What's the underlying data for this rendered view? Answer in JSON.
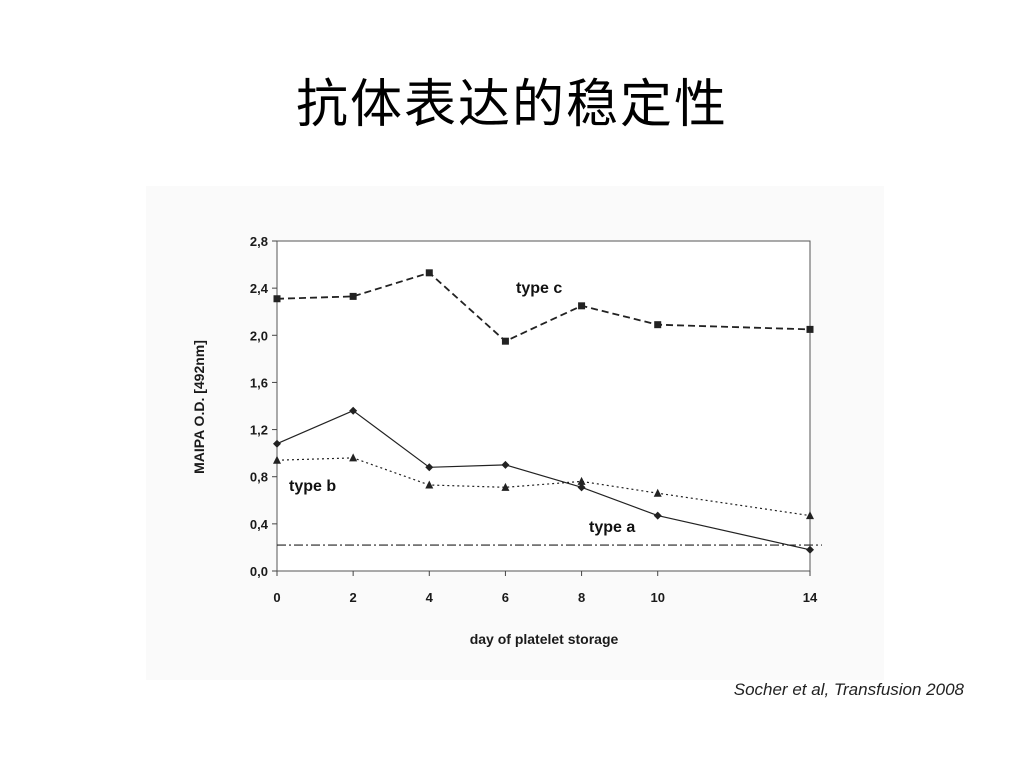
{
  "slide": {
    "title": "抗体表达的稳定性",
    "citation": "Socher et al, Transfusion 2008"
  },
  "chart_data": {
    "type": "line",
    "xlabel": "day of platelet storage",
    "ylabel": "MAIPA O.D. [492nm]",
    "x": [
      0,
      2,
      4,
      6,
      8,
      10,
      14
    ],
    "x_tick_labels": [
      "0",
      "2",
      "4",
      "6",
      "8",
      "10",
      "14"
    ],
    "y_tick_labels": [
      "0,0",
      "0,4",
      "0,8",
      "1,2",
      "1,6",
      "2,0",
      "2,4",
      "2,8"
    ],
    "y_ticks": [
      0,
      0.4,
      0.8,
      1.2,
      1.6,
      2.0,
      2.4,
      2.8
    ],
    "ylim": [
      0,
      2.8
    ],
    "grid": false,
    "series": [
      {
        "name": "type c",
        "values": [
          2.31,
          2.33,
          2.53,
          1.95,
          2.25,
          2.09,
          2.05
        ],
        "style": "dashed",
        "marker": "square",
        "color": "#222222"
      },
      {
        "name": "type a",
        "values": [
          1.08,
          1.36,
          0.88,
          0.9,
          0.71,
          0.47,
          0.18
        ],
        "style": "solid",
        "marker": "diamond",
        "color": "#222222"
      },
      {
        "name": "type b",
        "values": [
          0.94,
          0.96,
          0.73,
          0.71,
          0.76,
          0.66,
          0.47
        ],
        "style": "dotted",
        "marker": "triangle",
        "color": "#222222"
      }
    ],
    "reference_line": {
      "y": 0.22,
      "style": "dash-dot"
    }
  }
}
